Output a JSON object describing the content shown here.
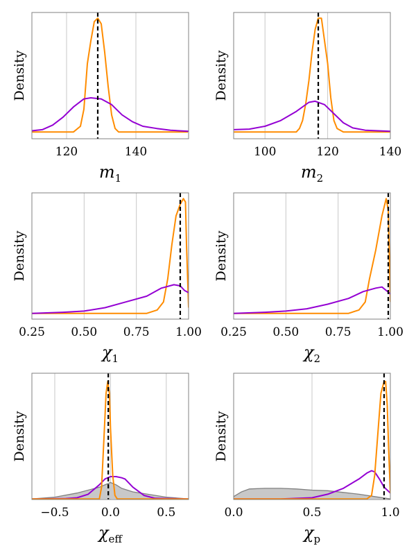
{
  "chart_data": [
    {
      "type": "line",
      "ylabel": "Density",
      "xlabel_main": "m",
      "xlabel_sub": "1",
      "xlim": [
        110,
        155.2
      ],
      "ylim": [
        -0.06,
        1.05
      ],
      "xticks": [
        120,
        140
      ],
      "xtick_labels": [
        "120",
        "140"
      ],
      "grid": "vertical",
      "truth": 129,
      "series": [
        {
          "color": "#ff8c00",
          "x": [
            110,
            122,
            124,
            125,
            126,
            127,
            128,
            129,
            130,
            131,
            132,
            133,
            134,
            135,
            155
          ],
          "y": [
            0,
            0,
            0.05,
            0.2,
            0.6,
            0.8,
            0.97,
            1.0,
            0.95,
            0.7,
            0.4,
            0.15,
            0.03,
            0,
            0
          ]
        },
        {
          "color": "#9400d3",
          "x": [
            110,
            113,
            116,
            119,
            122,
            125,
            127,
            130,
            133,
            136,
            139,
            142,
            146,
            150,
            155.2
          ],
          "y": [
            0.01,
            0.02,
            0.06,
            0.13,
            0.22,
            0.29,
            0.3,
            0.29,
            0.24,
            0.15,
            0.09,
            0.05,
            0.03,
            0.015,
            0.005
          ]
        }
      ]
    },
    {
      "type": "line",
      "ylabel": "Density",
      "xlabel_main": "m",
      "xlabel_sub": "2",
      "xlim": [
        90,
        140
      ],
      "ylim": [
        -0.06,
        1.05
      ],
      "xticks": [
        100,
        120,
        140
      ],
      "xtick_labels": [
        "100",
        "120",
        "140"
      ],
      "grid": "vertical",
      "truth": 117,
      "series": [
        {
          "color": "#ff8c00",
          "x": [
            90,
            110,
            111,
            112,
            113,
            114,
            115,
            116,
            117,
            118,
            119,
            120,
            121,
            122,
            123,
            125,
            140
          ],
          "y": [
            0,
            0,
            0.03,
            0.1,
            0.25,
            0.45,
            0.7,
            0.9,
            1.0,
            1.0,
            0.8,
            0.6,
            0.3,
            0.1,
            0.03,
            0,
            0
          ]
        },
        {
          "color": "#9400d3",
          "x": [
            90,
            95,
            100,
            105,
            110,
            114,
            116,
            119,
            122,
            125,
            128,
            132,
            140
          ],
          "y": [
            0.02,
            0.025,
            0.05,
            0.1,
            0.18,
            0.26,
            0.27,
            0.24,
            0.16,
            0.08,
            0.035,
            0.015,
            0.005
          ]
        }
      ]
    },
    {
      "type": "line",
      "ylabel": "Density",
      "xlabel_main": "χ",
      "xlabel_sub": "1",
      "xlim": [
        0.25,
        1.0
      ],
      "ylim": [
        -0.05,
        1.05
      ],
      "xticks": [
        0.25,
        0.5,
        0.75,
        1.0
      ],
      "xtick_labels": [
        "0.25",
        "0.50",
        "0.75",
        "1.00"
      ],
      "grid": "vertical",
      "truth": 0.96,
      "series": [
        {
          "color": "#ff8c00",
          "x": [
            0.25,
            0.8,
            0.85,
            0.88,
            0.9,
            0.92,
            0.94,
            0.96,
            0.975,
            0.985,
            0.99,
            1.0
          ],
          "y": [
            0,
            0,
            0.03,
            0.1,
            0.3,
            0.6,
            0.85,
            0.95,
            1.0,
            0.97,
            0.6,
            0.05
          ]
        },
        {
          "color": "#9400d3",
          "x": [
            0.25,
            0.4,
            0.5,
            0.6,
            0.7,
            0.8,
            0.87,
            0.93,
            0.96,
            0.98,
            1.0
          ],
          "y": [
            0,
            0.01,
            0.02,
            0.05,
            0.1,
            0.15,
            0.22,
            0.25,
            0.24,
            0.2,
            0.18
          ]
        }
      ]
    },
    {
      "type": "line",
      "ylabel": "Density",
      "xlabel_main": "χ",
      "xlabel_sub": "2",
      "xlim": [
        0.25,
        1.0
      ],
      "ylim": [
        -0.05,
        1.05
      ],
      "xticks": [
        0.25,
        0.5,
        0.75,
        1.0
      ],
      "xtick_labels": [
        "0.25",
        "0.50",
        "0.75",
        "1.00"
      ],
      "grid": "vertical",
      "truth": 0.99,
      "series": [
        {
          "color": "#ff8c00",
          "x": [
            0.25,
            0.8,
            0.85,
            0.88,
            0.9,
            0.93,
            0.96,
            0.98,
            0.99,
            1.0
          ],
          "y": [
            0,
            0,
            0.03,
            0.1,
            0.3,
            0.55,
            0.85,
            1.0,
            0.9,
            0.1
          ]
        },
        {
          "color": "#9400d3",
          "x": [
            0.25,
            0.4,
            0.5,
            0.6,
            0.7,
            0.8,
            0.87,
            0.93,
            0.96,
            0.98,
            1.0
          ],
          "y": [
            0,
            0.01,
            0.02,
            0.04,
            0.08,
            0.13,
            0.19,
            0.22,
            0.23,
            0.2,
            0.17
          ]
        }
      ]
    },
    {
      "type": "line",
      "ylabel": "Density",
      "xlabel_main": "χ",
      "xlabel_sub": "eff",
      "xlim": [
        -0.705,
        0.7
      ],
      "ylim": [
        -0.005,
        1.07
      ],
      "xticks": [
        -0.5,
        0.0,
        0.5
      ],
      "xtick_labels": [
        "−0.5",
        "0.0",
        "0.5"
      ],
      "grid": "vertical",
      "truth": -0.02,
      "prior": {
        "color": "#808080",
        "fill": "#c8c8c8",
        "x": [
          -0.705,
          -0.5,
          -0.3,
          -0.1,
          0,
          0.05,
          0.1,
          0.2,
          0.3,
          0.5,
          0.7
        ],
        "y": [
          0,
          0.015,
          0.05,
          0.1,
          0.14,
          0.12,
          0.09,
          0.06,
          0.045,
          0.015,
          0
        ]
      },
      "series": [
        {
          "color": "#9400d3",
          "x": [
            -0.705,
            -0.4,
            -0.3,
            -0.2,
            -0.1,
            -0.05,
            0,
            0.05,
            0.1,
            0.13,
            0.2,
            0.3,
            0.4,
            0.7
          ],
          "y": [
            0,
            0.003,
            0.01,
            0.04,
            0.12,
            0.17,
            0.19,
            0.19,
            0.18,
            0.17,
            0.1,
            0.03,
            0.005,
            0
          ]
        },
        {
          "color": "#ff8c00",
          "x": [
            -0.705,
            -0.1,
            -0.08,
            -0.06,
            -0.04,
            -0.025,
            -0.01,
            0,
            0.02,
            0.04,
            0.06,
            0.7
          ],
          "y": [
            0,
            0,
            0.1,
            0.5,
            0.9,
            1.0,
            0.9,
            0.6,
            0.2,
            0.03,
            0,
            0
          ]
        }
      ]
    },
    {
      "type": "line",
      "ylabel": "Density",
      "xlabel_main": "χ",
      "xlabel_sub": "p",
      "xlim": [
        0,
        1.0
      ],
      "ylim": [
        -0.005,
        1.07
      ],
      "xticks": [
        0,
        0.5,
        1.0
      ],
      "xtick_labels": [
        "0.0",
        "0.5",
        "1.0"
      ],
      "grid": "vertical",
      "truth": 0.96,
      "prior": {
        "color": "#808080",
        "fill": "#c8c8c8",
        "x": [
          0,
          0.05,
          0.1,
          0.2,
          0.3,
          0.4,
          0.5,
          0.6,
          0.7,
          0.8,
          0.9,
          1.0
        ],
        "y": [
          0.02,
          0.06,
          0.085,
          0.09,
          0.09,
          0.085,
          0.075,
          0.07,
          0.055,
          0.04,
          0.02,
          0
        ]
      },
      "series": [
        {
          "color": "#9400d3",
          "x": [
            0,
            0.3,
            0.5,
            0.6,
            0.7,
            0.75,
            0.8,
            0.85,
            0.88,
            0.9,
            0.93,
            0.96,
            1.0
          ],
          "y": [
            0,
            0,
            0.01,
            0.04,
            0.09,
            0.13,
            0.17,
            0.22,
            0.24,
            0.23,
            0.17,
            0.1,
            0.05
          ]
        },
        {
          "color": "#ff8c00",
          "x": [
            0,
            0.85,
            0.88,
            0.9,
            0.92,
            0.94,
            0.96,
            0.97,
            0.98,
            0.99,
            1.0
          ],
          "y": [
            0,
            0,
            0.03,
            0.2,
            0.55,
            0.9,
            1.0,
            1.0,
            0.8,
            0.4,
            0.05
          ]
        }
      ]
    }
  ]
}
